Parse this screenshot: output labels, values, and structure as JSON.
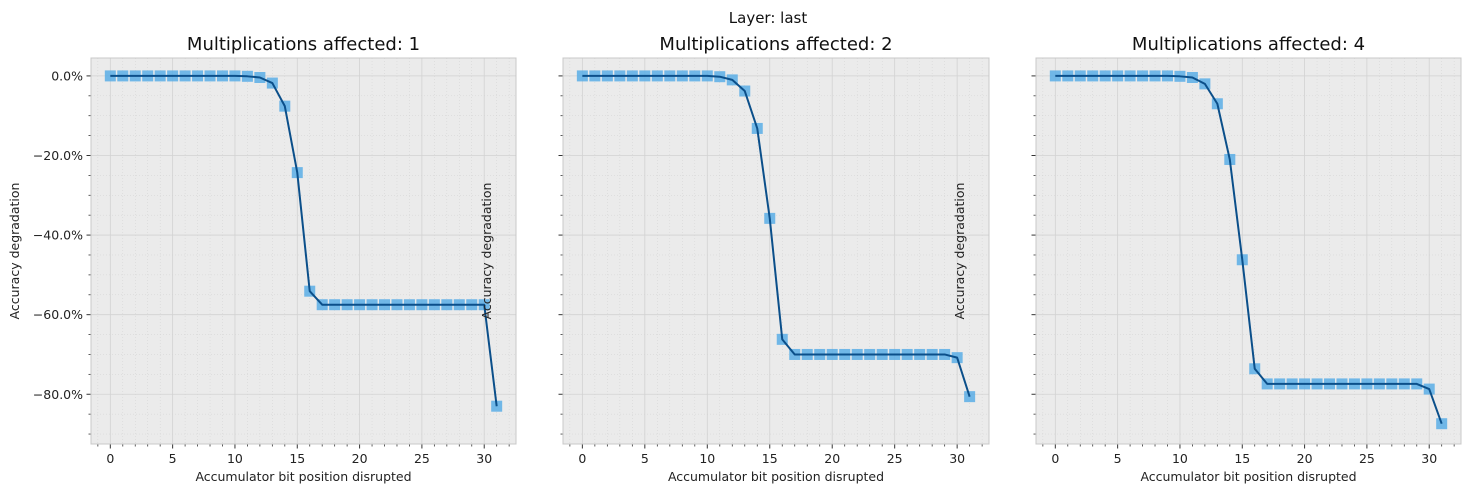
{
  "figure": {
    "suptitle": "Layer: last"
  },
  "colors": {
    "axes_bg": "#ebebeb",
    "grid": "#d2d2d2",
    "spine": "#c8c8c8",
    "line": "#0b4f8a",
    "marker": "#5aaee6"
  },
  "chart_data": [
    {
      "type": "line",
      "title": "Multiplications affected: 1",
      "xlabel": "Accumulator bit position disrupted",
      "ylabel": "Accuracy degradation",
      "xlim": [
        -1.55,
        32.55
      ],
      "ylim": [
        -92.5,
        4.5
      ],
      "xticks": [
        0,
        5,
        10,
        15,
        20,
        25,
        30
      ],
      "yticks": [
        0,
        -20,
        -40,
        -60,
        -80
      ],
      "ytick_labels": [
        "0.0%",
        "−20.0%",
        "−40.0%",
        "−60.0%",
        "−80.0%"
      ],
      "grid": true,
      "x": [
        0,
        1,
        2,
        3,
        4,
        5,
        6,
        7,
        8,
        9,
        10,
        11,
        12,
        13,
        14,
        15,
        16,
        17,
        18,
        19,
        20,
        21,
        22,
        23,
        24,
        25,
        26,
        27,
        28,
        29,
        30,
        31
      ],
      "series": [
        {
          "values": [
            0,
            0,
            0,
            0,
            0,
            0,
            0,
            0,
            0,
            0,
            0,
            -0.1,
            -0.4,
            -1.8,
            -7.6,
            -24.3,
            -54.1,
            -57.5,
            -57.5,
            -57.5,
            -57.5,
            -57.5,
            -57.5,
            -57.5,
            -57.5,
            -57.5,
            -57.5,
            -57.5,
            -57.5,
            -57.5,
            -57.5,
            -83.0
          ]
        }
      ]
    },
    {
      "type": "line",
      "title": "Multiplications affected: 2",
      "xlabel": "Accumulator bit position disrupted",
      "ylabel": "Accuracy degradation",
      "xlim": [
        -1.55,
        32.55
      ],
      "ylim": [
        -92.5,
        4.5
      ],
      "xticks": [
        0,
        5,
        10,
        15,
        20,
        25,
        30
      ],
      "yticks": [
        0,
        -20,
        -40,
        -60,
        -80
      ],
      "ytick_labels": [],
      "grid": true,
      "x": [
        0,
        1,
        2,
        3,
        4,
        5,
        6,
        7,
        8,
        9,
        10,
        11,
        12,
        13,
        14,
        15,
        16,
        17,
        18,
        19,
        20,
        21,
        22,
        23,
        24,
        25,
        26,
        27,
        28,
        29,
        30,
        31
      ],
      "series": [
        {
          "values": [
            0,
            0,
            0,
            0,
            0,
            0,
            0,
            0,
            0,
            0,
            0,
            -0.2,
            -1.0,
            -3.8,
            -13.2,
            -35.8,
            -66.2,
            -70.0,
            -70.0,
            -70.0,
            -70.0,
            -70.0,
            -70.0,
            -70.0,
            -70.0,
            -70.0,
            -70.0,
            -70.0,
            -70.0,
            -70.0,
            -70.8,
            -80.6
          ]
        }
      ]
    },
    {
      "type": "line",
      "title": "Multiplications affected: 4",
      "xlabel": "Accumulator bit position disrupted",
      "ylabel": "Accuracy degradation",
      "xlim": [
        -1.55,
        32.55
      ],
      "ylim": [
        -92.5,
        4.5
      ],
      "xticks": [
        0,
        5,
        10,
        15,
        20,
        25,
        30
      ],
      "yticks": [
        0,
        -20,
        -40,
        -60,
        -80
      ],
      "ytick_labels": [],
      "grid": true,
      "x": [
        0,
        1,
        2,
        3,
        4,
        5,
        6,
        7,
        8,
        9,
        10,
        11,
        12,
        13,
        14,
        15,
        16,
        17,
        18,
        19,
        20,
        21,
        22,
        23,
        24,
        25,
        26,
        27,
        28,
        29,
        30,
        31
      ],
      "series": [
        {
          "values": [
            0,
            0,
            0,
            0,
            0,
            0,
            0,
            0,
            0,
            0,
            -0.1,
            -0.4,
            -2.0,
            -7.0,
            -21.0,
            -46.2,
            -73.6,
            -77.4,
            -77.4,
            -77.4,
            -77.4,
            -77.4,
            -77.4,
            -77.4,
            -77.4,
            -77.4,
            -77.4,
            -77.4,
            -77.4,
            -77.4,
            -78.7,
            -87.4
          ]
        }
      ]
    }
  ]
}
